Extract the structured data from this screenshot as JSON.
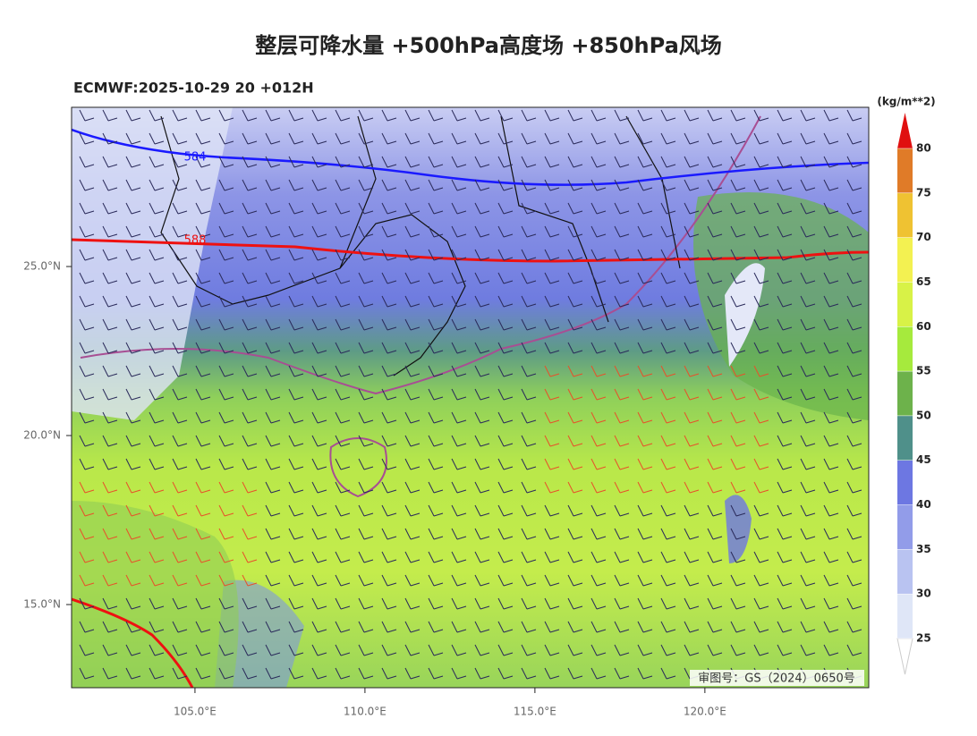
{
  "title": "整层可降水量 +500hPa高度场 +850hPa风场",
  "subtitle": "ECMWF:2025-10-29 20 +012H",
  "map": {
    "xlim": [
      101.37,
      124.82
    ],
    "ylim": [
      12.54,
      29.71
    ],
    "xticks": [
      {
        "value": 105,
        "label": "105.0°E"
      },
      {
        "value": 110,
        "label": "110.0°E"
      },
      {
        "value": 115,
        "label": "115.0°E"
      },
      {
        "value": 120,
        "label": "120.0°E"
      }
    ],
    "yticks": [
      {
        "value": 15,
        "label": "15.0°N"
      },
      {
        "value": 20,
        "label": "20.0°N"
      },
      {
        "value": 25,
        "label": "25.0°N"
      }
    ],
    "contours": [
      {
        "label": 584,
        "color": "#1a1aff"
      },
      {
        "label": 588,
        "color": "#ee1111"
      }
    ]
  },
  "colorbar": {
    "unit": "(kg/m**2)",
    "levels": [
      25,
      30,
      35,
      40,
      45,
      50,
      55,
      60,
      65,
      70,
      75,
      80
    ],
    "colors": [
      "#ffffff",
      "#dfe6f7",
      "#b9c3f1",
      "#929ce9",
      "#6d77e2",
      "#4f908a",
      "#6db24b",
      "#a6ea3d",
      "#d8f247",
      "#f3f151",
      "#efc232",
      "#e07b28",
      "#e01010"
    ]
  },
  "watermark": "审图号：GS（2024）0650号"
}
